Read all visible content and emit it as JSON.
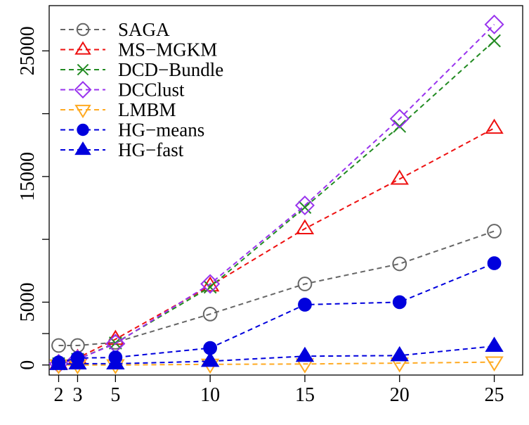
{
  "chart_data": {
    "type": "line",
    "title": "",
    "xlabel": "",
    "ylabel": "",
    "x": [
      2,
      3,
      5,
      10,
      15,
      20,
      25
    ],
    "x_ticks": [
      2,
      3,
      5,
      10,
      15,
      20,
      25
    ],
    "y_ticks": [
      0,
      5000,
      15000,
      25000
    ],
    "xlim": [
      1.5,
      26.5
    ],
    "ylim": [
      -800,
      28600
    ],
    "grid": false,
    "legend_position": "top-left",
    "series": [
      {
        "name": "SAGA",
        "color": "#666666",
        "marker": "circle-open",
        "values": [
          1550,
          1550,
          1800,
          4050,
          6450,
          8050,
          10650
        ]
      },
      {
        "name": "MS−MGKM",
        "color": "#ee1111",
        "marker": "triangle-up-open",
        "values": [
          100,
          550,
          2050,
          6300,
          10850,
          14800,
          18850
        ]
      },
      {
        "name": "DCD−Bundle",
        "color": "#228b22",
        "marker": "x",
        "values": [
          100,
          450,
          1750,
          6200,
          12550,
          19000,
          25800
        ]
      },
      {
        "name": "DCClust",
        "color": "#9933ee",
        "marker": "diamond-open",
        "values": [
          100,
          450,
          1700,
          6450,
          12700,
          19600,
          27100
        ]
      },
      {
        "name": "LMBM",
        "color": "#ffaa22",
        "marker": "triangle-down-open",
        "values": [
          0,
          0,
          0,
          50,
          80,
          150,
          230
        ]
      },
      {
        "name": "HG−means",
        "color": "#0000dd",
        "marker": "circle-filled",
        "values": [
          200,
          550,
          600,
          1350,
          4800,
          5000,
          8100
        ]
      },
      {
        "name": "HG−fast",
        "color": "#0000dd",
        "marker": "triangle-up-filled",
        "values": [
          50,
          100,
          100,
          300,
          700,
          750,
          1500
        ]
      }
    ]
  }
}
